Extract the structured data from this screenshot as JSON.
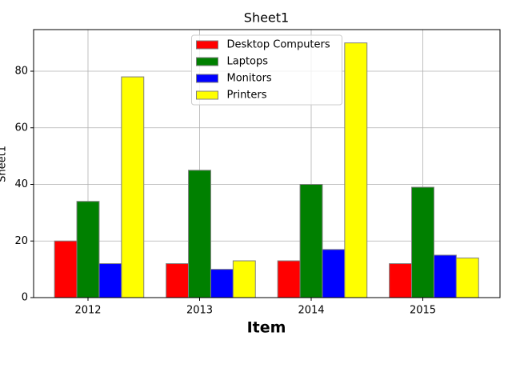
{
  "chart_data": {
    "type": "bar",
    "title": "Sheet1",
    "x_label": "Item",
    "y_label": "Sheet1",
    "categories": [
      "2012",
      "2013",
      "2014",
      "2015"
    ],
    "series": [
      {
        "name": "Desktop Computers",
        "color": "#ff0000",
        "values": [
          20,
          12,
          13,
          12
        ]
      },
      {
        "name": "Laptops",
        "color": "#008000",
        "values": [
          34,
          45,
          40,
          39
        ]
      },
      {
        "name": "Monitors",
        "color": "#0000ff",
        "values": [
          12,
          10,
          17,
          15
        ]
      },
      {
        "name": "Printers",
        "color": "#ffff00",
        "values": [
          78,
          13,
          90,
          14
        ]
      }
    ],
    "ylim": [
      0,
      94.7
    ],
    "yticks": [
      0,
      20,
      40,
      60,
      80
    ],
    "grid": true,
    "legend": "upper center"
  }
}
